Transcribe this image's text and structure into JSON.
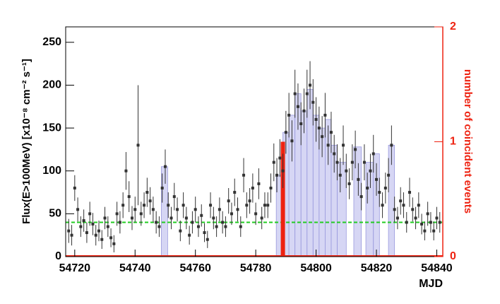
{
  "chart_data": {
    "type": "scatter",
    "ylabel": "Flux(E>100MeV) [x10⁻⁸ cm⁻² s⁻¹]",
    "y2label": "number of coincident events",
    "xlabel": "MJD",
    "xlim": [
      54717,
      54842
    ],
    "xticks": [
      54720,
      54740,
      54760,
      54780,
      54800,
      54820,
      54840
    ],
    "ylim": [
      0,
      268
    ],
    "yticks": [
      0,
      50,
      100,
      150,
      200,
      250
    ],
    "y2lim": [
      0,
      2
    ],
    "y2ticks": [
      0,
      1,
      2
    ],
    "color": "#333333",
    "x": [
      54718,
      54719,
      54720,
      54721,
      54722,
      54723,
      54724,
      54725,
      54726,
      54727,
      54728,
      54729,
      54730,
      54731,
      54732,
      54733,
      54734,
      54735,
      54736,
      54737,
      54738,
      54739,
      54740,
      54741,
      54742,
      54743,
      54744,
      54745,
      54746,
      54747,
      54748,
      54749,
      54750,
      54751,
      54752,
      54753,
      54754,
      54755,
      54756,
      54757,
      54758,
      54759,
      54760,
      54761,
      54762,
      54763,
      54764,
      54765,
      54766,
      54767,
      54768,
      54769,
      54770,
      54771,
      54772,
      54773,
      54774,
      54775,
      54776,
      54777,
      54778,
      54779,
      54780,
      54781,
      54782,
      54783,
      54784,
      54785,
      54786,
      54787,
      54788,
      54789,
      54790,
      54791,
      54792,
      54793,
      54794,
      54795,
      54796,
      54797,
      54798,
      54799,
      54800,
      54801,
      54802,
      54803,
      54804,
      54805,
      54806,
      54807,
      54808,
      54809,
      54810,
      54811,
      54812,
      54813,
      54814,
      54815,
      54816,
      54817,
      54818,
      54819,
      54820,
      54821,
      54822,
      54823,
      54824,
      54825,
      54826,
      54827,
      54828,
      54829,
      54830,
      54831,
      54832,
      54833,
      54834,
      54835,
      54836,
      54837,
      54838,
      54839,
      54840,
      54841
    ],
    "values": [
      30,
      25,
      80,
      55,
      35,
      42,
      28,
      50,
      38,
      25,
      30,
      20,
      45,
      35,
      22,
      15,
      50,
      40,
      60,
      100,
      70,
      45,
      55,
      130,
      50,
      60,
      75,
      65,
      55,
      40,
      35,
      80,
      105,
      60,
      45,
      70,
      55,
      30,
      60,
      45,
      25,
      40,
      55,
      35,
      48,
      28,
      20,
      60,
      45,
      35,
      55,
      40,
      35,
      65,
      50,
      75,
      55,
      35,
      95,
      60,
      65,
      80,
      50,
      85,
      45,
      60,
      60,
      80,
      110,
      95,
      115,
      100,
      145,
      165,
      135,
      190,
      175,
      155,
      170,
      190,
      200,
      180,
      160,
      150,
      140,
      165,
      130,
      145,
      120,
      110,
      95,
      130,
      100,
      85,
      110,
      125,
      90,
      70,
      110,
      80,
      100,
      120,
      90,
      75,
      60,
      80,
      95,
      130,
      55,
      45,
      65,
      60,
      40,
      75,
      55,
      45,
      60,
      38,
      30,
      50,
      40,
      30,
      45,
      40
    ],
    "errors": [
      14,
      12,
      15,
      14,
      12,
      13,
      12,
      14,
      13,
      12,
      12,
      11,
      13,
      12,
      11,
      10,
      14,
      13,
      15,
      22,
      18,
      14,
      15,
      70,
      14,
      15,
      17,
      16,
      15,
      13,
      12,
      17,
      20,
      15,
      13,
      16,
      14,
      12,
      15,
      13,
      11,
      13,
      15,
      12,
      13,
      11,
      10,
      15,
      13,
      12,
      14,
      13,
      12,
      15,
      13,
      16,
      14,
      12,
      20,
      15,
      15,
      17,
      13,
      18,
      13,
      15,
      15,
      17,
      22,
      20,
      22,
      20,
      25,
      26,
      24,
      28,
      27,
      25,
      26,
      28,
      28,
      27,
      26,
      25,
      24,
      26,
      23,
      24,
      22,
      21,
      20,
      23,
      20,
      18,
      21,
      22,
      19,
      16,
      21,
      18,
      20,
      22,
      19,
      17,
      15,
      18,
      20,
      23,
      15,
      13,
      16,
      15,
      12,
      17,
      14,
      13,
      15,
      12,
      11,
      14,
      12,
      11,
      13,
      12
    ],
    "blocks": {
      "color": "#c8c8f0",
      "start": [
        54748.7,
        54786.8,
        54789,
        54791,
        54793,
        54795,
        54797,
        54799,
        54801,
        54803,
        54805,
        54807,
        54812.5,
        54816.5,
        54819,
        54824
      ],
      "end": [
        54750.8,
        54789,
        54791,
        54793,
        54795,
        54797,
        54799,
        54801,
        54803,
        54805,
        54807,
        54810,
        54815,
        54819,
        54821,
        54826
      ],
      "values": [
        105,
        95,
        145,
        165,
        190,
        170,
        195,
        165,
        150,
        160,
        130,
        110,
        128,
        110,
        120,
        130
      ]
    },
    "baseline": {
      "value": 40,
      "color": "#22cc22"
    },
    "events": {
      "color": "#ee2211",
      "x": [
        54789
      ],
      "values": [
        1
      ]
    }
  }
}
